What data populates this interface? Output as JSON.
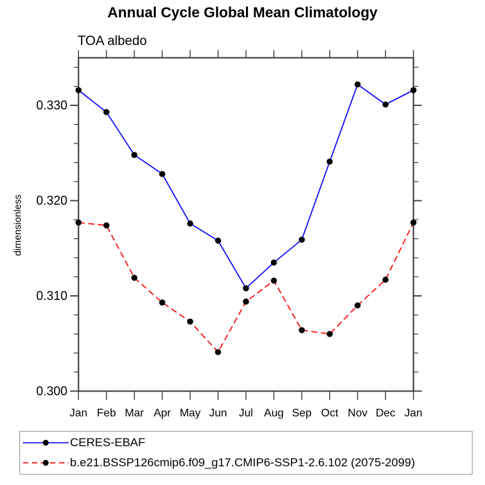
{
  "chart_data": {
    "type": "line",
    "title": "Annual Cycle Global Mean Climatology",
    "subtitle": "TOA albedo",
    "xlabel": "",
    "ylabel": "dimensionless",
    "categories": [
      "Jan",
      "Feb",
      "Mar",
      "Apr",
      "May",
      "Jun",
      "Jul",
      "Aug",
      "Sep",
      "Oct",
      "Nov",
      "Dec",
      "Jan"
    ],
    "ylim": [
      0.3,
      0.335
    ],
    "y_major_ticks": [
      0.3,
      0.31,
      0.32,
      0.33
    ],
    "y_major_tick_labels": [
      "0.300",
      "0.310",
      "0.320",
      "0.330"
    ],
    "y_minor_tick_step": 0.002,
    "grid": false,
    "legend_position": "bottom-left",
    "series": [
      {
        "name": "CERES-EBAF",
        "color": "#0000ff",
        "line_style": "solid",
        "marker": "filled-circle",
        "marker_color": "#000000",
        "values": [
          0.3316,
          0.3293,
          0.3248,
          0.3228,
          0.3176,
          0.3158,
          0.3108,
          0.3135,
          0.3159,
          0.3241,
          0.3322,
          0.3301,
          0.3316
        ]
      },
      {
        "name": "b.e21.BSSP126cmip6.f09_g17.CMIP6-SSP1-2.6.102 (2075-2099)",
        "color": "#ff0000",
        "line_style": "dashed",
        "marker": "filled-circle",
        "marker_color": "#000000",
        "values": [
          0.3177,
          0.3174,
          0.3119,
          0.3093,
          0.3073,
          0.3041,
          0.3094,
          0.3116,
          0.3064,
          0.306,
          0.309,
          0.3117,
          0.3177
        ]
      }
    ]
  }
}
